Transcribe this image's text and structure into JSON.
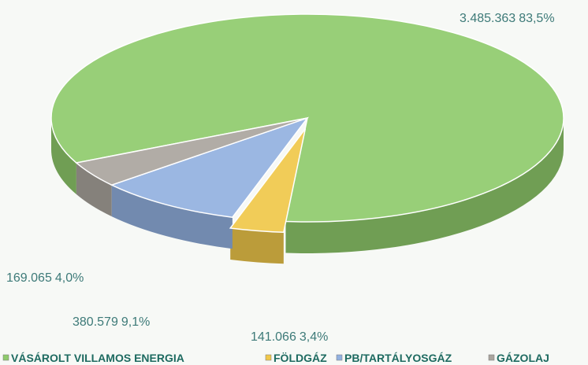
{
  "chart_data": {
    "type": "pie",
    "categories": [
      "VÁSÁROLT VILLAMOS ENERGIA",
      "FÖLDGÁZ",
      "PB/TARTÁLYOSGÁZ",
      "GÁZOLAJ"
    ],
    "values": [
      3485363,
      141066,
      380579,
      169065
    ],
    "value_labels": [
      "3.485.363",
      "141.066",
      "380.579",
      "169.065"
    ],
    "percentages": [
      83.5,
      3.4,
      9.1,
      4.0
    ],
    "percentage_labels": [
      "83,5%",
      "3,4%",
      "9,1%",
      "4,0%"
    ],
    "colors": [
      "#8fcb6c",
      "#f0c84a",
      "#92b1e0",
      "#aaa59e"
    ],
    "legend": "bottom"
  }
}
